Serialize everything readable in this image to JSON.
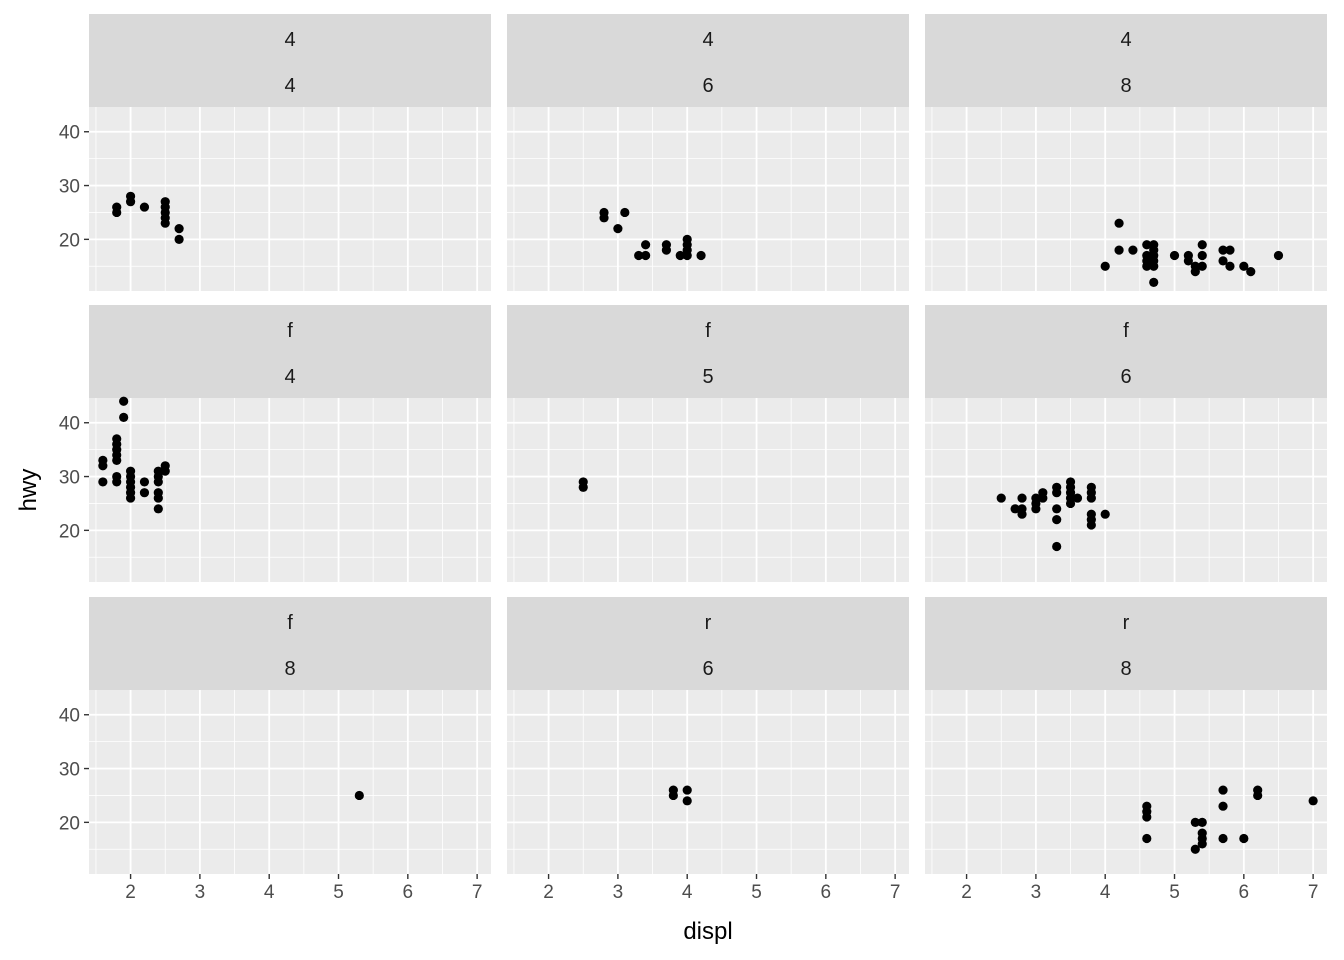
{
  "chart_data": {
    "type": "scatter",
    "xlabel": "displ",
    "ylabel": "hwy",
    "xlim": [
      1.4,
      7.2
    ],
    "ylim": [
      10.4,
      44.6
    ],
    "x_ticks": [
      2,
      3,
      4,
      5,
      6,
      7
    ],
    "y_ticks": [
      20,
      30,
      40
    ],
    "grid": true,
    "colors": {
      "panel_bg": "#ebebeb",
      "strip_bg": "#d9d9d9",
      "grid": "#ffffff",
      "point": "#000000"
    },
    "panels": [
      {
        "strip": [
          "4",
          "4"
        ],
        "points": [
          [
            1.8,
            26
          ],
          [
            1.8,
            25
          ],
          [
            2.0,
            28
          ],
          [
            2.0,
            27
          ],
          [
            2.2,
            26
          ],
          [
            2.5,
            27
          ],
          [
            2.5,
            26
          ],
          [
            2.5,
            25
          ],
          [
            2.5,
            24
          ],
          [
            2.5,
            23
          ],
          [
            2.7,
            22
          ],
          [
            2.7,
            20
          ]
        ]
      },
      {
        "strip": [
          "4",
          "6"
        ],
        "points": [
          [
            2.8,
            25
          ],
          [
            2.8,
            24
          ],
          [
            3.0,
            22
          ],
          [
            3.1,
            25
          ],
          [
            3.3,
            17
          ],
          [
            3.4,
            19
          ],
          [
            3.4,
            17
          ],
          [
            3.7,
            19
          ],
          [
            3.7,
            18
          ],
          [
            3.9,
            17
          ],
          [
            4.0,
            20
          ],
          [
            4.0,
            19
          ],
          [
            4.0,
            18
          ],
          [
            4.0,
            17
          ],
          [
            4.2,
            17
          ]
        ]
      },
      {
        "strip": [
          "4",
          "8"
        ],
        "points": [
          [
            4.0,
            15
          ],
          [
            4.2,
            23
          ],
          [
            4.2,
            18
          ],
          [
            4.4,
            18
          ],
          [
            4.6,
            19
          ],
          [
            4.6,
            17
          ],
          [
            4.6,
            16
          ],
          [
            4.6,
            15
          ],
          [
            4.7,
            19
          ],
          [
            4.7,
            18
          ],
          [
            4.7,
            17
          ],
          [
            4.7,
            16
          ],
          [
            4.7,
            15
          ],
          [
            4.7,
            12
          ],
          [
            5.0,
            17
          ],
          [
            5.2,
            17
          ],
          [
            5.2,
            16
          ],
          [
            5.3,
            15
          ],
          [
            5.3,
            14
          ],
          [
            5.4,
            19
          ],
          [
            5.4,
            17
          ],
          [
            5.4,
            15
          ],
          [
            5.7,
            18
          ],
          [
            5.7,
            16
          ],
          [
            5.8,
            18
          ],
          [
            5.8,
            15
          ],
          [
            6.0,
            15
          ],
          [
            6.1,
            14
          ],
          [
            6.5,
            17
          ]
        ]
      },
      {
        "strip": [
          "f",
          "4"
        ],
        "points": [
          [
            1.6,
            33
          ],
          [
            1.6,
            32
          ],
          [
            1.6,
            29
          ],
          [
            1.8,
            37
          ],
          [
            1.8,
            36
          ],
          [
            1.8,
            35
          ],
          [
            1.8,
            34
          ],
          [
            1.8,
            33
          ],
          [
            1.8,
            30
          ],
          [
            1.8,
            29
          ],
          [
            1.9,
            44
          ],
          [
            1.9,
            41
          ],
          [
            2.0,
            31
          ],
          [
            2.0,
            30
          ],
          [
            2.0,
            29
          ],
          [
            2.0,
            28
          ],
          [
            2.0,
            27
          ],
          [
            2.0,
            26
          ],
          [
            2.2,
            29
          ],
          [
            2.2,
            27
          ],
          [
            2.4,
            31
          ],
          [
            2.4,
            30
          ],
          [
            2.4,
            29
          ],
          [
            2.4,
            27
          ],
          [
            2.4,
            26
          ],
          [
            2.4,
            24
          ],
          [
            2.5,
            32
          ],
          [
            2.5,
            31
          ]
        ]
      },
      {
        "strip": [
          "f",
          "5"
        ],
        "points": [
          [
            2.5,
            29
          ],
          [
            2.5,
            28
          ]
        ]
      },
      {
        "strip": [
          "f",
          "6"
        ],
        "points": [
          [
            2.5,
            26
          ],
          [
            2.7,
            24
          ],
          [
            2.8,
            26
          ],
          [
            2.8,
            24
          ],
          [
            2.8,
            23
          ],
          [
            3.0,
            26
          ],
          [
            3.0,
            25
          ],
          [
            3.0,
            24
          ],
          [
            3.1,
            27
          ],
          [
            3.1,
            26
          ],
          [
            3.3,
            28
          ],
          [
            3.3,
            27
          ],
          [
            3.3,
            24
          ],
          [
            3.3,
            22
          ],
          [
            3.3,
            17
          ],
          [
            3.5,
            29
          ],
          [
            3.5,
            28
          ],
          [
            3.5,
            27
          ],
          [
            3.5,
            26
          ],
          [
            3.5,
            25
          ],
          [
            3.6,
            26
          ],
          [
            3.8,
            28
          ],
          [
            3.8,
            27
          ],
          [
            3.8,
            26
          ],
          [
            3.8,
            23
          ],
          [
            3.8,
            22
          ],
          [
            3.8,
            21
          ],
          [
            4.0,
            23
          ]
        ]
      },
      {
        "strip": [
          "f",
          "8"
        ],
        "points": [
          [
            5.3,
            25
          ]
        ]
      },
      {
        "strip": [
          "r",
          "6"
        ],
        "points": [
          [
            3.8,
            26
          ],
          [
            3.8,
            25
          ],
          [
            4.0,
            26
          ],
          [
            4.0,
            24
          ]
        ]
      },
      {
        "strip": [
          "r",
          "8"
        ],
        "points": [
          [
            4.6,
            23
          ],
          [
            4.6,
            22
          ],
          [
            4.6,
            21
          ],
          [
            4.6,
            17
          ],
          [
            5.3,
            20
          ],
          [
            5.3,
            15
          ],
          [
            5.4,
            20
          ],
          [
            5.4,
            18
          ],
          [
            5.4,
            17
          ],
          [
            5.4,
            16
          ],
          [
            5.7,
            26
          ],
          [
            5.7,
            23
          ],
          [
            5.7,
            17
          ],
          [
            6.0,
            17
          ],
          [
            6.2,
            26
          ],
          [
            6.2,
            25
          ],
          [
            7.0,
            24
          ]
        ]
      }
    ]
  }
}
